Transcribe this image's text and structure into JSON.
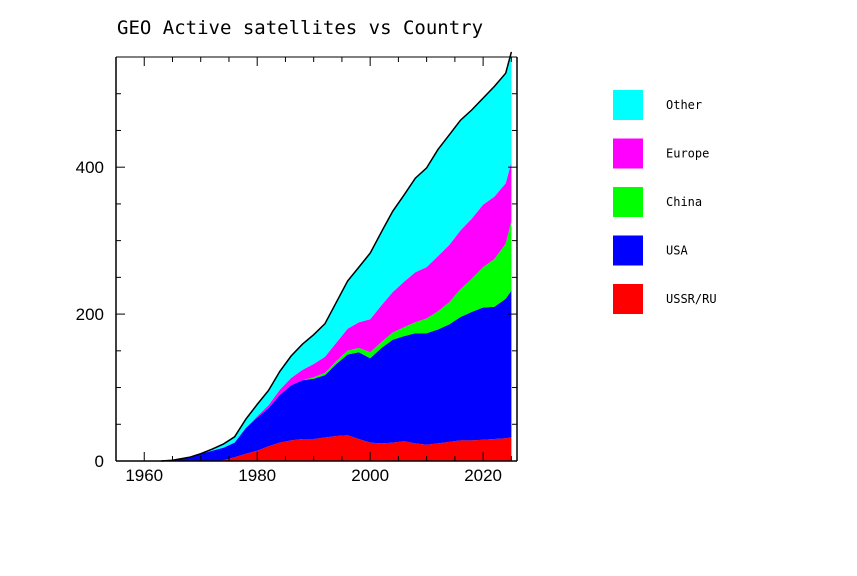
{
  "chart_data": {
    "type": "area",
    "stacked": true,
    "title": "GEO Active satellites vs Country",
    "xlabel": "",
    "ylabel": "",
    "xlim": [
      1955,
      2026
    ],
    "ylim": [
      0,
      550
    ],
    "xticks": [
      1960,
      1980,
      2000,
      2020
    ],
    "yticks": [
      0,
      200,
      400
    ],
    "grid": false,
    "legend_position": "right",
    "x": [
      1963,
      1965,
      1968,
      1970,
      1972,
      1974,
      1976,
      1978,
      1980,
      1982,
      1984,
      1986,
      1988,
      1990,
      1992,
      1994,
      1996,
      1998,
      2000,
      2002,
      2004,
      2006,
      2008,
      2010,
      2012,
      2014,
      2016,
      2018,
      2020,
      2022,
      2024,
      2025
    ],
    "series": [
      {
        "name": "USSR/RU",
        "color": "#ff0000",
        "values": [
          0,
          0,
          0,
          0,
          0,
          1,
          5,
          10,
          14,
          20,
          25,
          28,
          30,
          30,
          32,
          34,
          35,
          30,
          25,
          24,
          25,
          27,
          24,
          22,
          24,
          26,
          28,
          28,
          29,
          30,
          31,
          32
        ]
      },
      {
        "name": "USA",
        "color": "#0000ff",
        "values": [
          0,
          1,
          5,
          10,
          14,
          17,
          20,
          35,
          45,
          52,
          65,
          75,
          80,
          82,
          85,
          98,
          110,
          118,
          115,
          130,
          140,
          143,
          150,
          152,
          155,
          160,
          168,
          175,
          180,
          180,
          190,
          200
        ]
      },
      {
        "name": "China",
        "color": "#00ff00",
        "values": [
          0,
          0,
          0,
          0,
          0,
          0,
          0,
          0,
          0,
          0,
          0,
          0,
          0,
          2,
          3,
          4,
          5,
          6,
          8,
          8,
          10,
          12,
          15,
          20,
          25,
          30,
          38,
          45,
          55,
          65,
          75,
          95
        ]
      },
      {
        "name": "Europe",
        "color": "#ff00ff",
        "values": [
          0,
          0,
          0,
          0,
          0,
          0,
          0,
          0,
          2,
          4,
          7,
          10,
          14,
          18,
          22,
          25,
          30,
          35,
          45,
          50,
          55,
          62,
          68,
          70,
          75,
          78,
          80,
          82,
          85,
          85,
          82,
          80
        ]
      },
      {
        "name": "Other",
        "color": "#00ffff",
        "values": [
          0,
          0,
          0,
          0,
          2,
          5,
          8,
          12,
          16,
          20,
          25,
          30,
          35,
          40,
          45,
          55,
          65,
          75,
          90,
          100,
          110,
          118,
          128,
          135,
          145,
          150,
          150,
          148,
          145,
          150,
          150,
          150
        ]
      }
    ],
    "legend_order": [
      "Other",
      "Europe",
      "China",
      "USA",
      "USSR/RU"
    ]
  }
}
